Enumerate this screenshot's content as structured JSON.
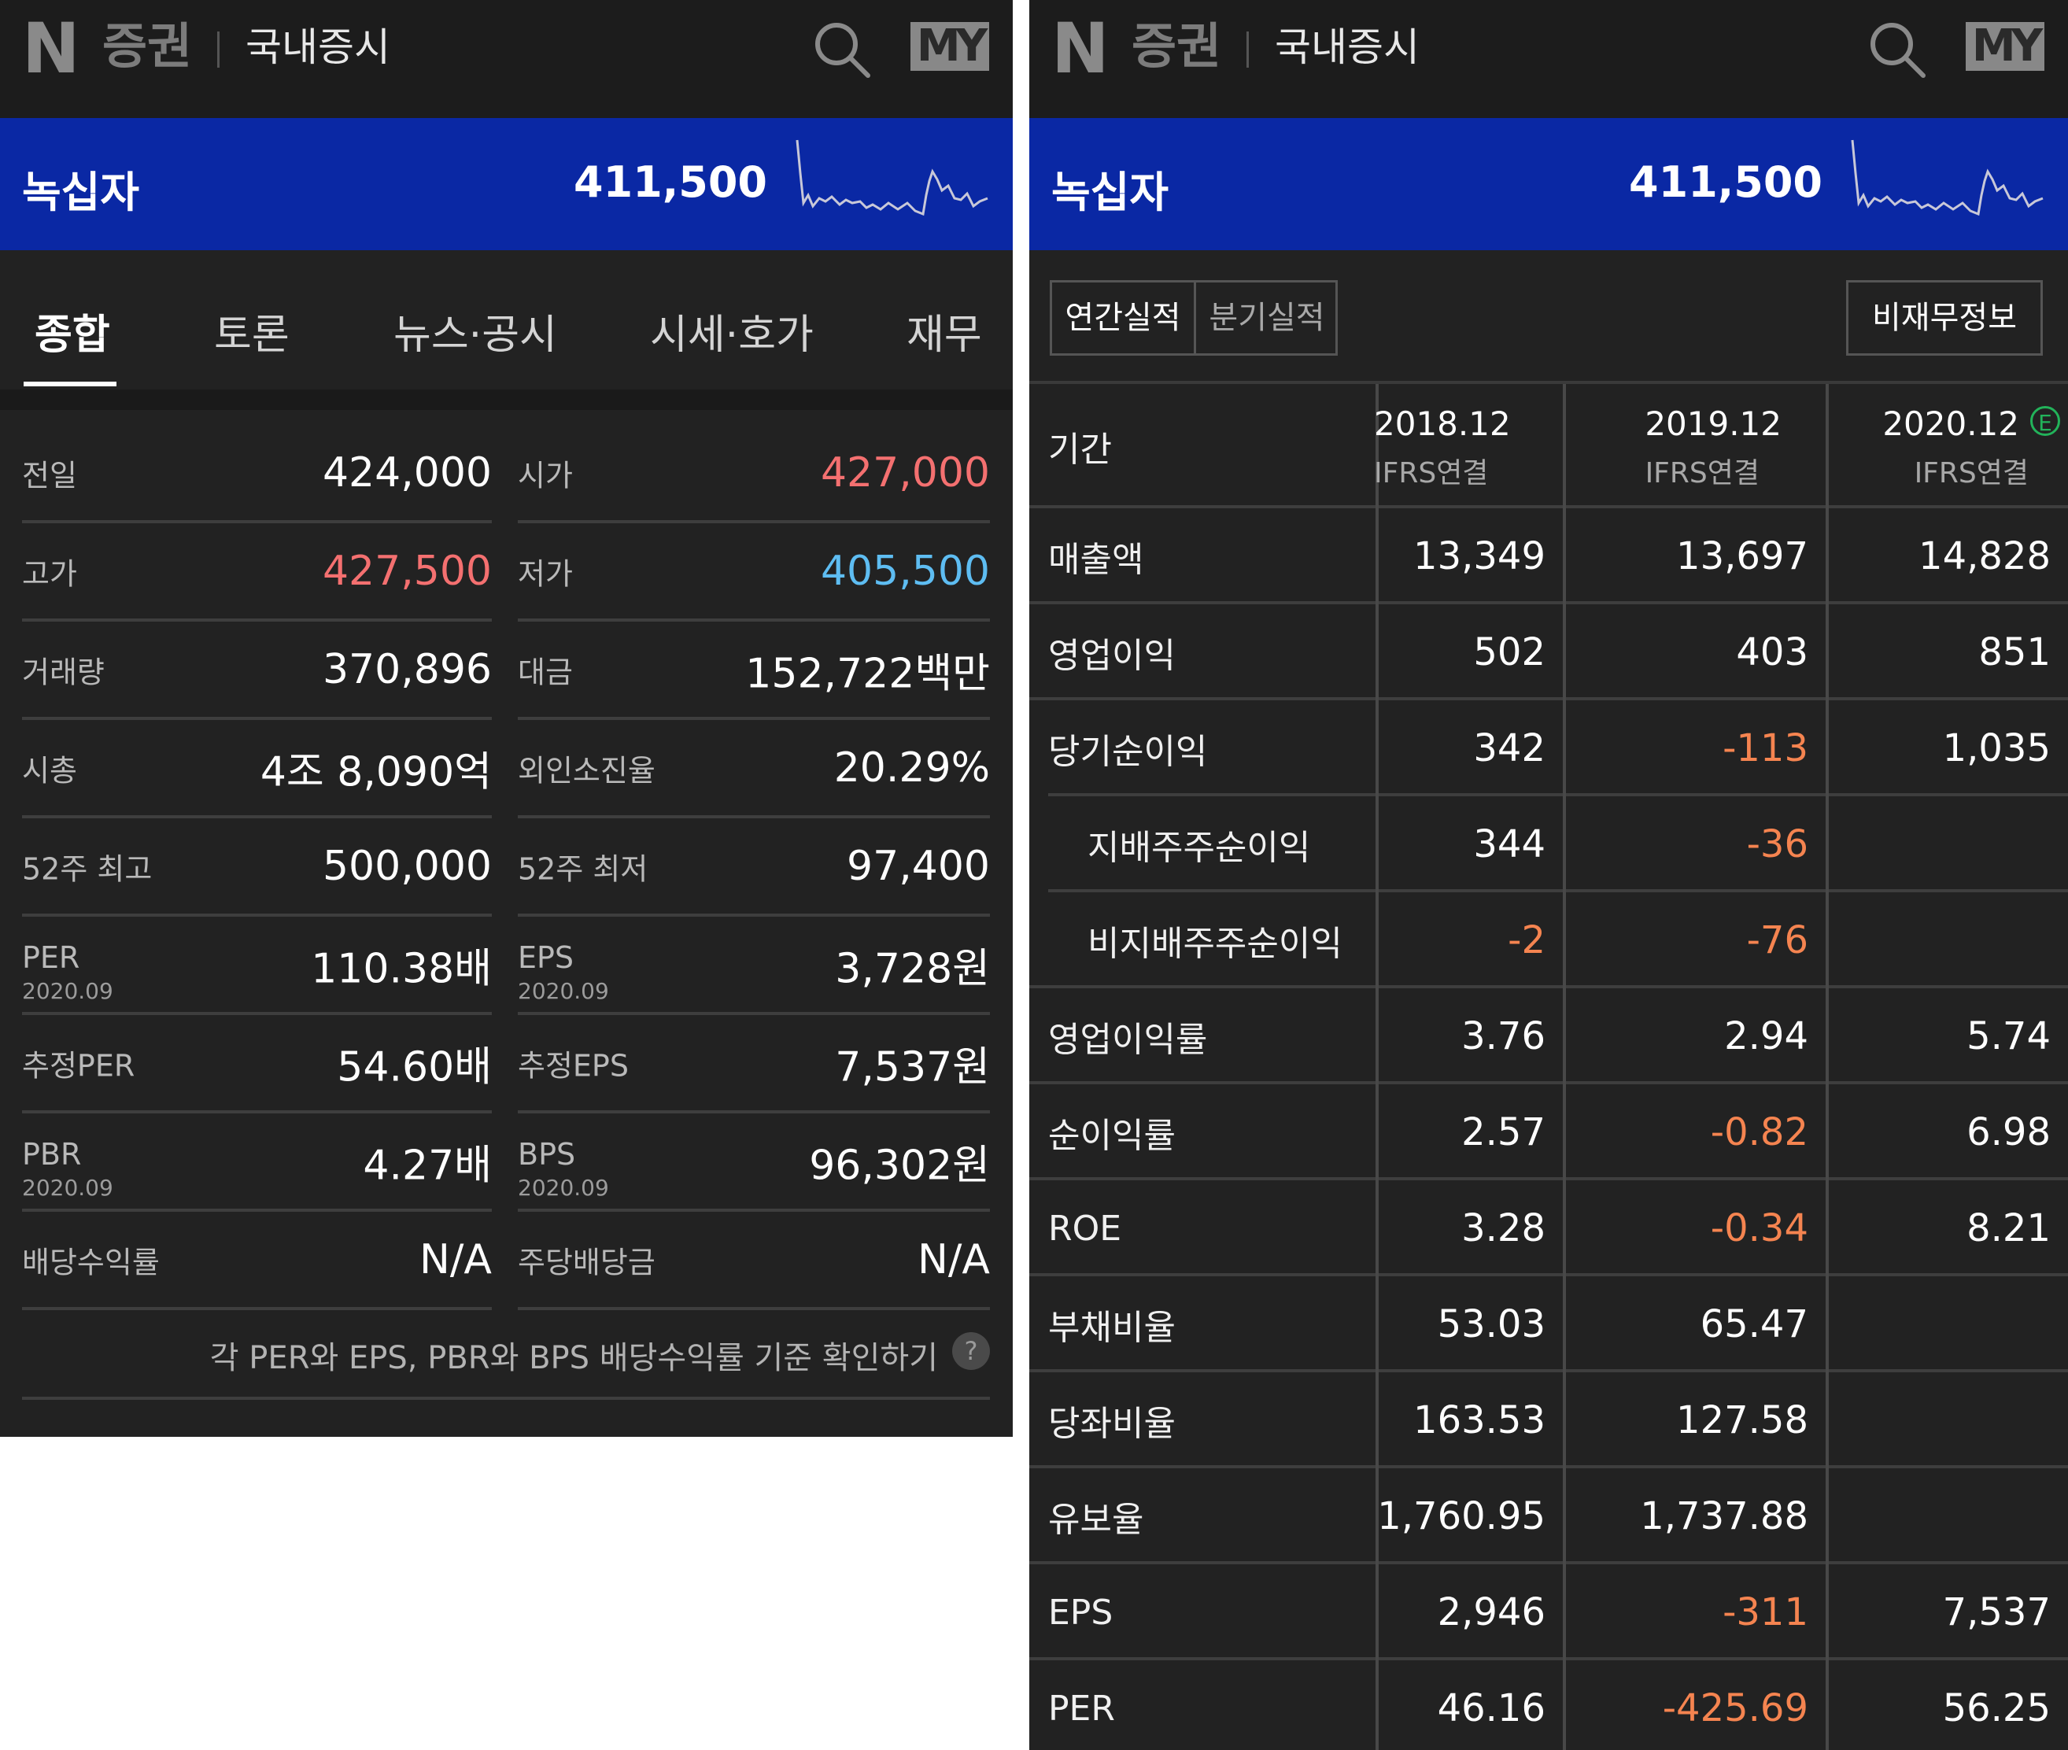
{
  "app": {
    "logo_n": "N",
    "logo_text": "증권",
    "section": "국내증시",
    "my_label": "MY",
    "search_icon": "search-icon"
  },
  "stock": {
    "name": "녹십자",
    "price": "411,500",
    "sparkline_color": "#c8c8d8"
  },
  "tabs": [
    "종합",
    "토론",
    "뉴스·공시",
    "시세·호가",
    "재무"
  ],
  "stats": [
    {
      "left": {
        "label": "전일",
        "sub": "",
        "value": "424,000",
        "color": ""
      },
      "right": {
        "label": "시가",
        "sub": "",
        "value": "427,000",
        "color": "red"
      }
    },
    {
      "left": {
        "label": "고가",
        "sub": "",
        "value": "427,500",
        "color": "red"
      },
      "right": {
        "label": "저가",
        "sub": "",
        "value": "405,500",
        "color": "blue"
      }
    },
    {
      "left": {
        "label": "거래량",
        "sub": "",
        "value": "370,896",
        "color": ""
      },
      "right": {
        "label": "대금",
        "sub": "",
        "value": "152,722백만",
        "color": ""
      }
    },
    {
      "left": {
        "label": "시총",
        "sub": "",
        "value": "4조 8,090억",
        "color": ""
      },
      "right": {
        "label": "외인소진율",
        "sub": "",
        "value": "20.29%",
        "color": ""
      }
    },
    {
      "left": {
        "label": "52주 최고",
        "sub": "",
        "value": "500,000",
        "color": ""
      },
      "right": {
        "label": "52주 최저",
        "sub": "",
        "value": "97,400",
        "color": ""
      }
    },
    {
      "left": {
        "label": "PER",
        "sub": "2020.09",
        "value": "110.38배",
        "color": ""
      },
      "right": {
        "label": "EPS",
        "sub": "2020.09",
        "value": "3,728원",
        "color": ""
      }
    },
    {
      "left": {
        "label": "추정PER",
        "sub": "",
        "value": "54.60배",
        "color": ""
      },
      "right": {
        "label": "추정EPS",
        "sub": "",
        "value": "7,537원",
        "color": ""
      }
    },
    {
      "left": {
        "label": "PBR",
        "sub": "2020.09",
        "value": "4.27배",
        "color": ""
      },
      "right": {
        "label": "BPS",
        "sub": "2020.09",
        "value": "96,302원",
        "color": ""
      }
    },
    {
      "left": {
        "label": "배당수익률",
        "sub": "",
        "value": "N/A",
        "color": ""
      },
      "right": {
        "label": "주당배당금",
        "sub": "",
        "value": "N/A",
        "color": ""
      }
    }
  ],
  "notice": {
    "text": "각 PER와 EPS, PBR와 BPS 배당수익률 기준 확인하기",
    "help": "?"
  },
  "financial": {
    "toggle": {
      "annual": "연간실적",
      "quarter": "분기실적"
    },
    "nonfinancial": "비재무정보",
    "period_label": "기간",
    "columns": [
      {
        "year": "2018.12",
        "basis": "IFRS연결",
        "estimate": ""
      },
      {
        "year": "2019.12",
        "basis": "IFRS연결",
        "estimate": ""
      },
      {
        "year": "2020.12",
        "basis": "IFRS연결",
        "estimate": "E"
      }
    ],
    "rows": [
      {
        "label": "매출액",
        "indent": false,
        "values": [
          "13,349",
          "13,697",
          "14,828"
        ]
      },
      {
        "label": "영업이익",
        "indent": false,
        "values": [
          "502",
          "403",
          "851"
        ]
      },
      {
        "label": "당기순이익",
        "indent": false,
        "values": [
          "342",
          "-113",
          "1,035"
        ]
      },
      {
        "label": "지배주주순이익",
        "indent": true,
        "values": [
          "344",
          "-36",
          ""
        ]
      },
      {
        "label": "비지배주주순이익",
        "indent": true,
        "values": [
          "-2",
          "-76",
          ""
        ]
      },
      {
        "label": "영업이익률",
        "indent": false,
        "values": [
          "3.76",
          "2.94",
          "5.74"
        ]
      },
      {
        "label": "순이익률",
        "indent": false,
        "values": [
          "2.57",
          "-0.82",
          "6.98"
        ]
      },
      {
        "label": "ROE",
        "indent": false,
        "values": [
          "3.28",
          "-0.34",
          "8.21"
        ]
      },
      {
        "label": "부채비율",
        "indent": false,
        "values": [
          "53.03",
          "65.47",
          ""
        ]
      },
      {
        "label": "당좌비율",
        "indent": false,
        "values": [
          "163.53",
          "127.58",
          ""
        ]
      },
      {
        "label": "유보율",
        "indent": false,
        "values": [
          "1,760.95",
          "1,737.88",
          ""
        ]
      },
      {
        "label": "EPS",
        "indent": false,
        "values": [
          "2,946",
          "-311",
          "7,537"
        ]
      },
      {
        "label": "PER",
        "indent": false,
        "values": [
          "46.16",
          "-425.69",
          "56.25"
        ]
      }
    ]
  },
  "colors": {
    "up": "#f47070",
    "down": "#5ebdf2",
    "negative": "#f58450",
    "stockbar": "#0a28a4",
    "estimate_badge": "#22b35a"
  }
}
